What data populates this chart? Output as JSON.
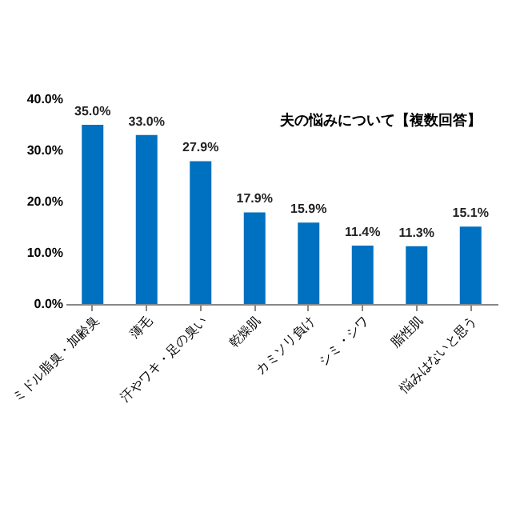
{
  "chart_data": {
    "type": "bar",
    "title": "夫の悩みについて【複数回答】",
    "categories": [
      "ミドル脂臭・加齢臭",
      "薄毛",
      "汗やワキ・足の臭い",
      "乾燥肌",
      "カミソリ負け",
      "シミ・シワ",
      "脂性肌",
      "悩みはないと思う"
    ],
    "values": [
      35.0,
      33.0,
      27.9,
      17.9,
      15.9,
      11.4,
      11.3,
      15.1
    ],
    "value_labels": [
      "35.0%",
      "33.0%",
      "27.9%",
      "17.9%",
      "15.9%",
      "11.4%",
      "11.3%",
      "15.1%"
    ],
    "color": "#0070c0",
    "ylim": [
      0,
      40
    ],
    "yticks": [
      {
        "value": 0,
        "label": "0.0%"
      },
      {
        "value": 10,
        "label": "10.0%"
      },
      {
        "value": 20,
        "label": "20.0%"
      },
      {
        "value": 30,
        "label": "30.0%"
      },
      {
        "value": 40,
        "label": "40.0%"
      }
    ],
    "grid": false
  }
}
